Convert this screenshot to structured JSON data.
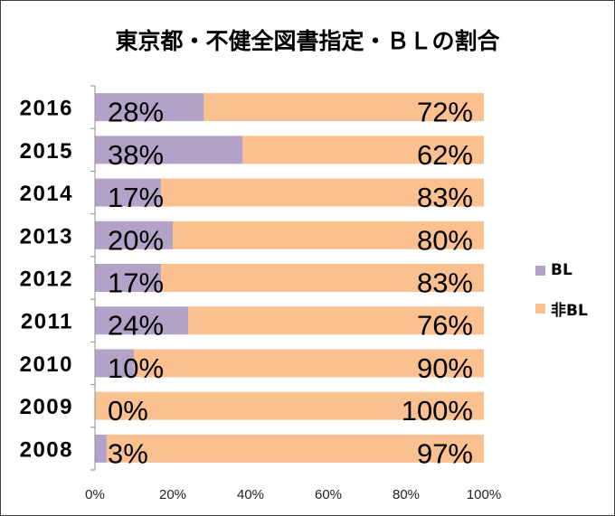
{
  "chart_data": {
    "type": "bar",
    "orientation": "horizontal",
    "stacked": true,
    "title": "東京都・不健全図書指定・ＢＬの割合",
    "categories": [
      "2016",
      "2015",
      "2014",
      "2013",
      "2012",
      "2011",
      "2010",
      "2009",
      "2008"
    ],
    "series": [
      {
        "name": "BL",
        "color": "#B3A2C7",
        "values": [
          28,
          38,
          17,
          20,
          17,
          24,
          10,
          0,
          3
        ],
        "data_labels": [
          "28%",
          "38%",
          "17%",
          "20%",
          "17%",
          "24%",
          "10%",
          "0%",
          "3%"
        ]
      },
      {
        "name": "非BL",
        "color": "#FAC090",
        "values": [
          72,
          62,
          83,
          80,
          83,
          76,
          90,
          100,
          97
        ],
        "data_labels": [
          "72%",
          "62%",
          "83%",
          "80%",
          "83%",
          "76%",
          "90%",
          "100%",
          "97%"
        ]
      }
    ],
    "xlim": [
      0,
      100
    ],
    "x_ticks": [
      0,
      20,
      40,
      60,
      80,
      100
    ],
    "x_tick_labels": [
      "0%",
      "20%",
      "40%",
      "60%",
      "80%",
      "100%"
    ],
    "grid": false,
    "legend_position": "right"
  }
}
